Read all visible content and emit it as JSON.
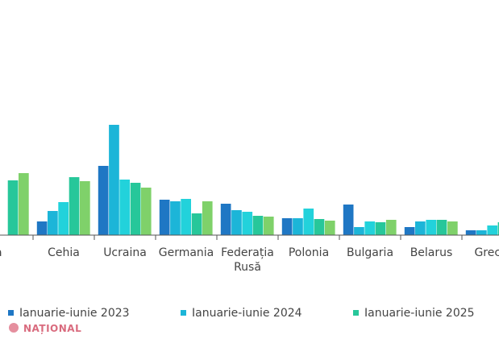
{
  "chart_data": {
    "type": "bar",
    "categories": [
      "a",
      "Cehia",
      "Ucraina",
      "Germania",
      "Federația Rusă",
      "Polonia",
      "Bulgaria",
      "Belarus",
      "Grecia"
    ],
    "series": [
      {
        "name": "Ianuarie-iunie 2023",
        "color": "#1f77c4",
        "values": [
          0,
          1.7,
          8.6,
          4.4,
          3.9,
          2.1,
          3.8,
          1.0,
          0.6
        ]
      },
      {
        "name": "Ianuarie-iunie 2024",
        "color": "#1cb5d8",
        "values": [
          0,
          3.0,
          13.7,
          4.2,
          3.1,
          2.1,
          1.0,
          1.7,
          0.6
        ]
      },
      {
        "name": "",
        "color": "#22d2db",
        "values": [
          0,
          4.1,
          6.9,
          4.5,
          2.9,
          3.3,
          1.7,
          1.9,
          1.2
        ]
      },
      {
        "name": "Ianuarie-iunie 2025",
        "color": "#27c79a",
        "values": [
          6.8,
          7.2,
          6.5,
          2.7,
          2.4,
          2.0,
          1.6,
          1.9,
          1.6
        ]
      },
      {
        "name": "",
        "color": "#7fd16a",
        "values": [
          7.7,
          6.7,
          5.9,
          4.2,
          2.3,
          1.8,
          1.9,
          1.7,
          1.2
        ]
      }
    ],
    "ylim": [
      0,
      16
    ],
    "grid": false,
    "legend": "bottom"
  },
  "watermark": {
    "text": "NAȚIONAL"
  }
}
